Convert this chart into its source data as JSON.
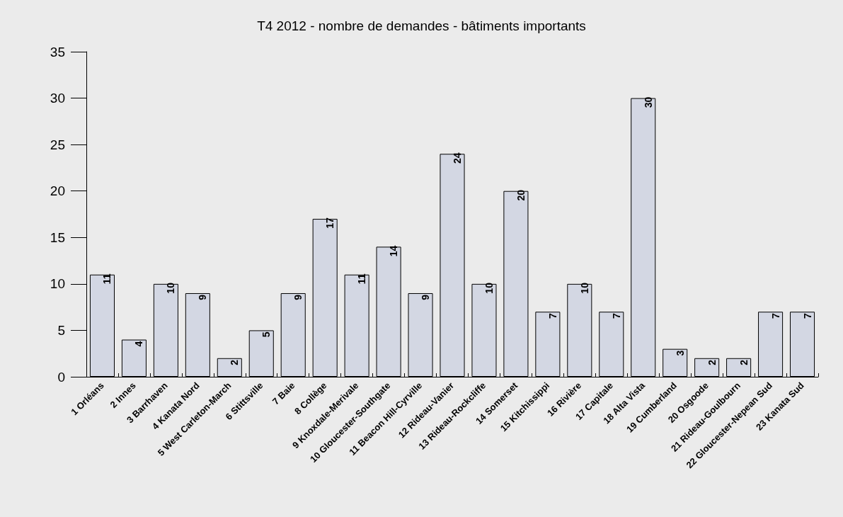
{
  "chart_data": {
    "type": "bar",
    "title": "T4 2012 - nombre de demandes - bâtiments importants",
    "categories": [
      "1 Orléans",
      "2 Innes",
      "3 Barrhaven",
      "4 Kanata Nord",
      "5 West Carleton-March",
      "6 Stittsville",
      "7 Baie",
      "8 Collège",
      "9 Knoxdale-Merivale",
      "10 Gloucester-Southgate",
      "11 Beacon Hill-Cyrville",
      "12 Rideau-Vanier",
      "13 Rideau-Rockcliffe",
      "14 Somerset",
      "15 Kitchissippi",
      "16 Rivière",
      "17 Capitale",
      "18 Alta Vista",
      "19 Cumberland",
      "20 Osgoode",
      "21 Rideau-Goulbourn",
      "22 Gloucester-Nepean Sud",
      "23 Kanata Sud"
    ],
    "values": [
      11,
      4,
      10,
      9,
      2,
      5,
      9,
      17,
      11,
      14,
      9,
      24,
      10,
      20,
      7,
      10,
      7,
      30,
      3,
      2,
      2,
      7,
      7
    ],
    "color": "#d3d7e3",
    "ylim": [
      0,
      35
    ],
    "yticks": [
      0,
      5,
      10,
      15,
      20,
      25,
      30,
      35
    ],
    "grid": false,
    "data_labels": true
  }
}
